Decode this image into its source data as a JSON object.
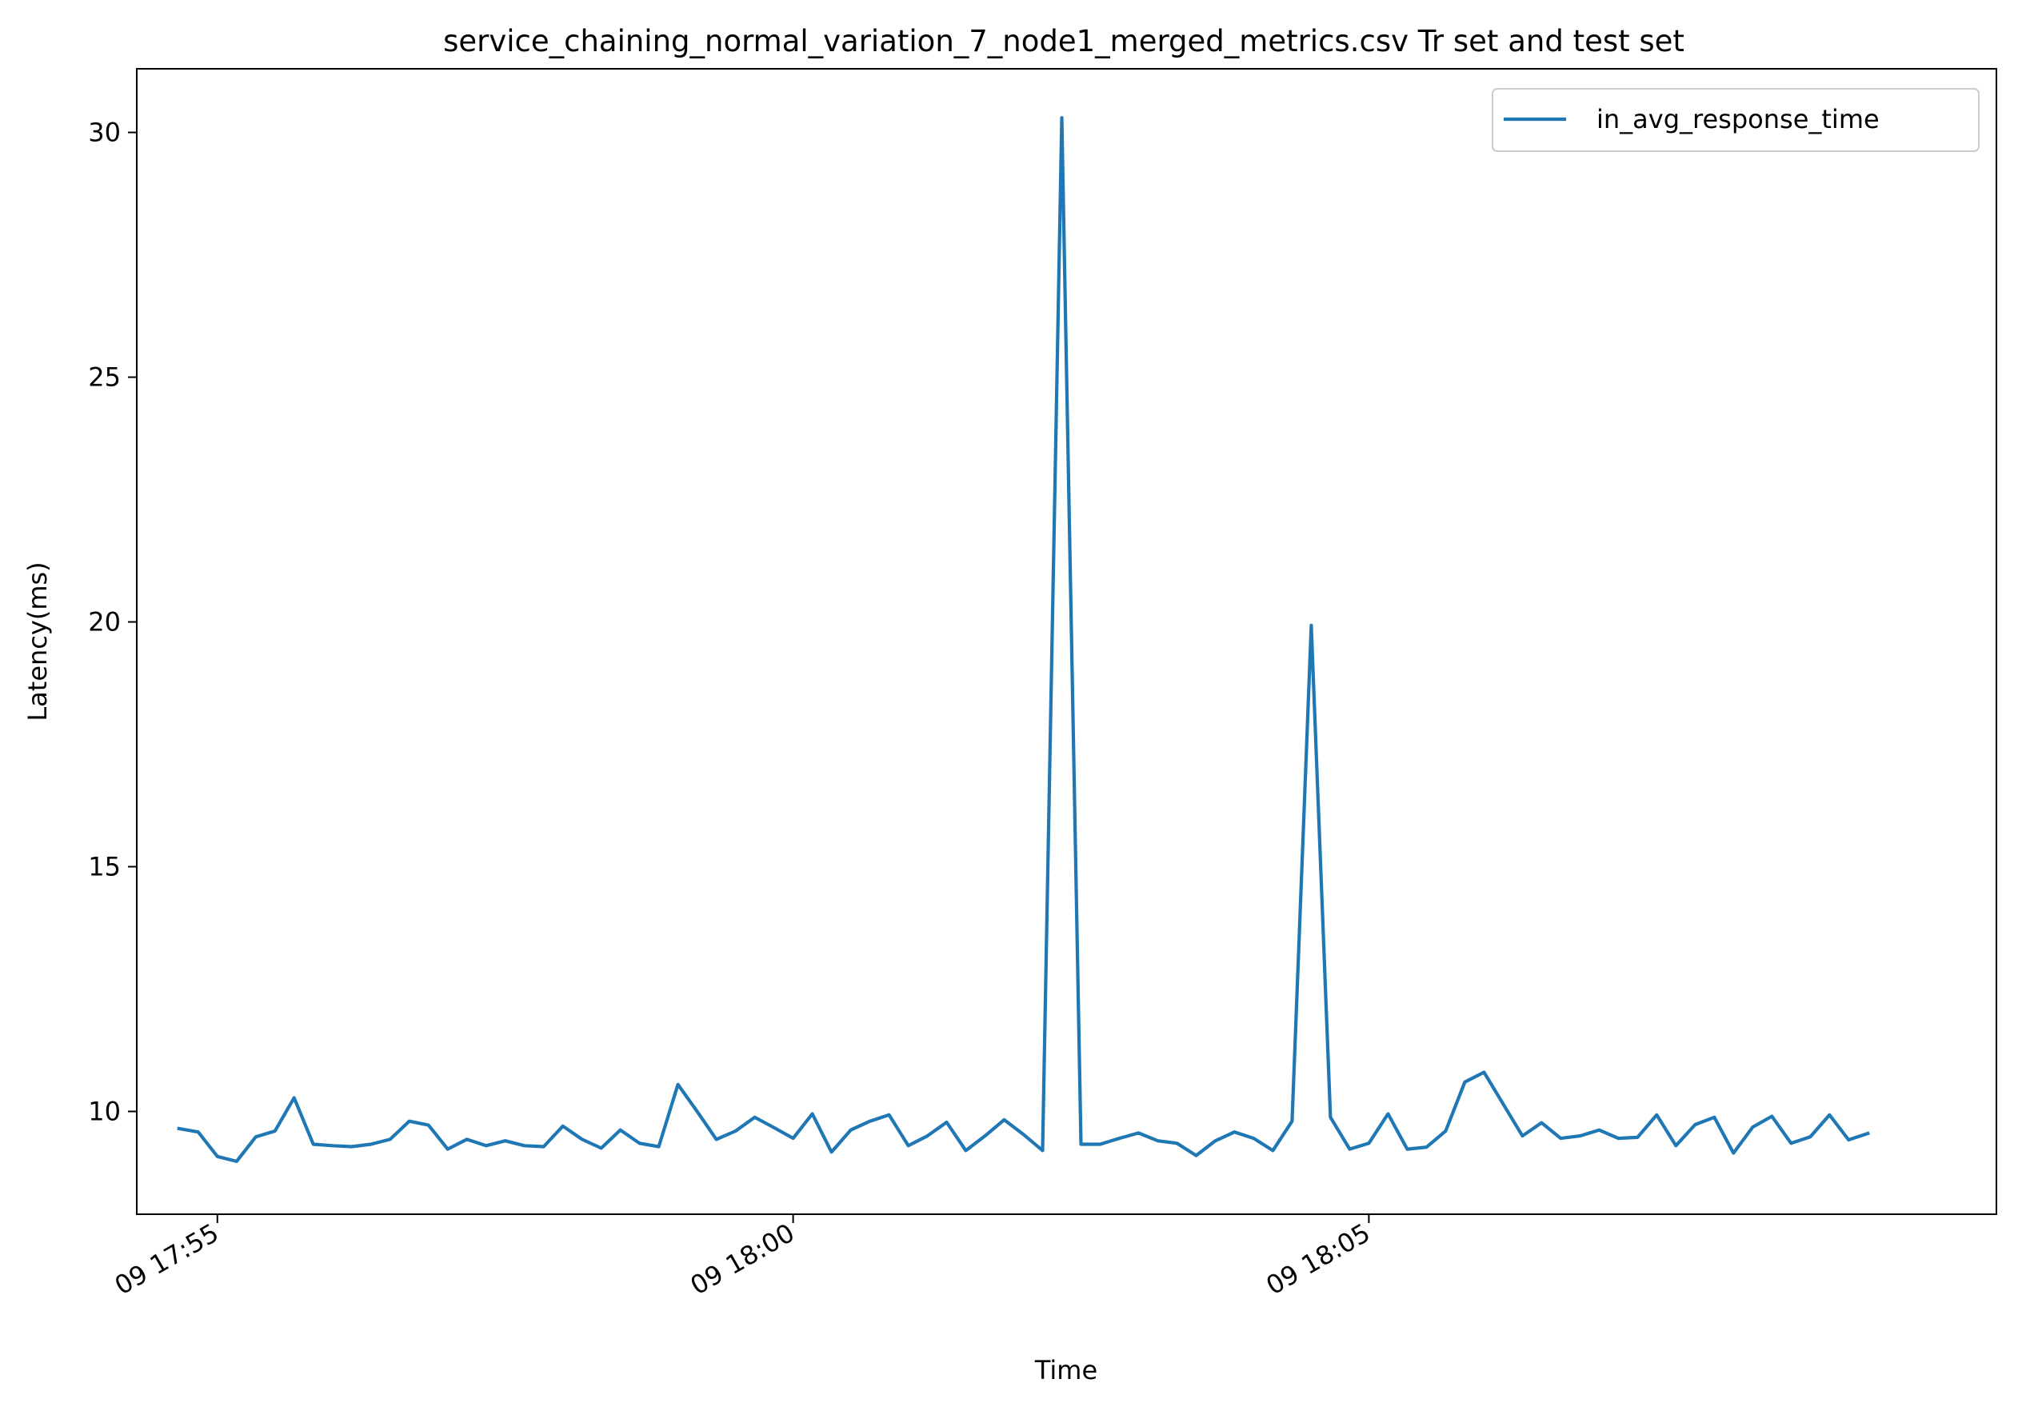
{
  "chart_data": {
    "type": "line",
    "title": "service_chaining_normal_variation_7_node1_merged_metrics.csv Tr set and test set",
    "xlabel": "Time",
    "ylabel": "Latency(ms)",
    "x_axis_type": "time",
    "xlim": [
      "09 17:54:18",
      "09 18:10:27"
    ],
    "ylim": [
      7.9,
      31.3
    ],
    "x_ticks": [
      "09 17:55",
      "09 18:00",
      "09 18:05"
    ],
    "y_ticks": [
      10,
      15,
      20,
      25,
      30
    ],
    "grid": false,
    "legend_position": "top-right",
    "series": [
      {
        "name": "in_avg_response_time",
        "color": "#1f77b4",
        "x": [
          "09 17:54:40",
          "09 17:54:50",
          "09 17:55:00",
          "09 17:55:10",
          "09 17:55:20",
          "09 17:55:30",
          "09 17:55:40",
          "09 17:55:50",
          "09 17:56:00",
          "09 17:56:10",
          "09 17:56:20",
          "09 17:56:30",
          "09 17:56:40",
          "09 17:56:50",
          "09 17:57:00",
          "09 17:57:10",
          "09 17:57:20",
          "09 17:57:30",
          "09 17:57:40",
          "09 17:57:50",
          "09 17:58:00",
          "09 17:58:10",
          "09 17:58:20",
          "09 17:58:30",
          "09 17:58:40",
          "09 17:58:50",
          "09 17:59:00",
          "09 17:59:10",
          "09 17:59:20",
          "09 17:59:30",
          "09 17:59:40",
          "09 17:59:50",
          "09 18:00:00",
          "09 18:00:10",
          "09 18:00:20",
          "09 18:00:30",
          "09 18:00:40",
          "09 18:00:50",
          "09 18:01:00",
          "09 18:01:10",
          "09 18:01:20",
          "09 18:01:30",
          "09 18:01:40",
          "09 18:01:50",
          "09 18:02:00",
          "09 18:02:10",
          "09 18:02:20",
          "09 18:02:30",
          "09 18:02:40",
          "09 18:02:50",
          "09 18:03:00",
          "09 18:03:10",
          "09 18:03:20",
          "09 18:03:30",
          "09 18:03:40",
          "09 18:03:50",
          "09 18:04:00",
          "09 18:04:10",
          "09 18:04:20",
          "09 18:04:30",
          "09 18:04:40",
          "09 18:04:50",
          "09 18:05:00",
          "09 18:05:10",
          "09 18:05:20",
          "09 18:05:30",
          "09 18:05:40",
          "09 18:05:50",
          "09 18:06:00",
          "09 18:06:10",
          "09 18:06:20",
          "09 18:06:30",
          "09 18:06:40",
          "09 18:06:50",
          "09 18:07:00",
          "09 18:07:10",
          "09 18:07:20",
          "09 18:07:30",
          "09 18:07:40",
          "09 18:07:50",
          "09 18:08:00",
          "09 18:08:10",
          "09 18:08:20",
          "09 18:08:30",
          "09 18:08:40",
          "09 18:08:50",
          "09 18:09:00",
          "09 18:09:10",
          "09 18:09:20",
          "09 18:09:30",
          "09 18:09:40",
          "09 18:09:50"
        ],
        "y": [
          9.65,
          9.58,
          9.08,
          8.98,
          9.48,
          9.6,
          10.28,
          9.33,
          9.3,
          9.28,
          9.33,
          9.43,
          9.8,
          9.72,
          9.23,
          9.43,
          9.3,
          9.4,
          9.3,
          9.28,
          9.7,
          9.43,
          9.25,
          9.62,
          9.35,
          9.28,
          10.55,
          10.0,
          9.43,
          9.6,
          9.88,
          9.67,
          9.45,
          9.95,
          9.17,
          9.62,
          9.8,
          9.93,
          9.3,
          9.5,
          9.78,
          9.2,
          9.5,
          9.83,
          9.53,
          9.2,
          30.3,
          9.33,
          9.33,
          9.45,
          9.56,
          9.4,
          9.35,
          9.1,
          9.4,
          9.58,
          9.45,
          9.2,
          9.8,
          19.93,
          9.88,
          9.23,
          9.35,
          9.95,
          9.23,
          9.27,
          9.6,
          10.6,
          10.8,
          10.15,
          9.5,
          9.77,
          9.45,
          9.5,
          9.62,
          9.45,
          9.47,
          9.93,
          9.3,
          9.73,
          9.88,
          9.15,
          9.68,
          9.9,
          9.35,
          9.48,
          9.93,
          9.42,
          9.55,
          null,
          null,
          null
        ]
      }
    ]
  }
}
